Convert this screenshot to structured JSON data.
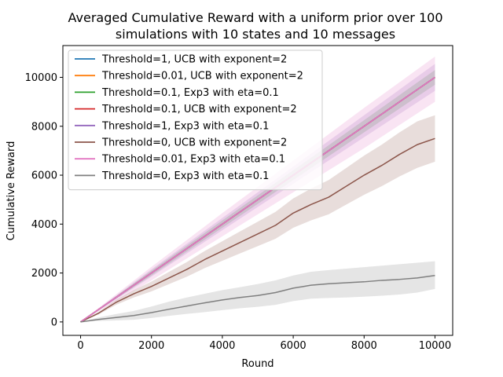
{
  "chart_data": {
    "type": "line",
    "title_lines": [
      "Averaged Cumulative Reward with a uniform prior over 100",
      "simulations with 10 states and 10 messages"
    ],
    "xlabel": "Round",
    "ylabel": "Cumulative Reward",
    "xlim": [
      -500,
      10500
    ],
    "ylim": [
      -550,
      11300
    ],
    "xticks": [
      0,
      2000,
      4000,
      6000,
      8000,
      10000
    ],
    "yticks": [
      0,
      2000,
      4000,
      6000,
      8000,
      10000
    ],
    "grid": false,
    "legend_position": "upper-left",
    "series": [
      {
        "name": "Threshold=1, UCB with exponent=2",
        "color": "#1f77b4",
        "x": [
          0,
          10000
        ],
        "y": [
          0,
          10000
        ],
        "band": [
          [
            0,
            0
          ],
          [
            0,
            0
          ]
        ]
      },
      {
        "name": "Threshold=0.01, UCB with exponent=2",
        "color": "#ff7f0e",
        "x": [
          0,
          10000
        ],
        "y": [
          0,
          10000
        ],
        "band": [
          [
            0,
            0
          ],
          [
            0,
            0
          ]
        ]
      },
      {
        "name": "Threshold=0.1, Exp3 with eta=0.1",
        "color": "#2ca02c",
        "x": [
          0,
          2000,
          4000,
          6000,
          8000,
          10000
        ],
        "y": [
          0,
          2000,
          4000,
          6000,
          8000,
          10000
        ],
        "band": [
          [
            0,
            0
          ],
          [
            1900,
            2100
          ],
          [
            3850,
            4150
          ],
          [
            5800,
            6200
          ],
          [
            7750,
            8250
          ],
          [
            9700,
            10300
          ]
        ]
      },
      {
        "name": "Threshold=0.1, UCB with exponent=2",
        "color": "#d62728",
        "x": [
          0,
          10000
        ],
        "y": [
          0,
          10000
        ],
        "band": [
          [
            0,
            0
          ],
          [
            0,
            0
          ]
        ]
      },
      {
        "name": "Threshold=1, Exp3 with eta=0.1",
        "color": "#9467bd",
        "x": [
          0,
          2000,
          4000,
          6000,
          8000,
          10000
        ],
        "y": [
          0,
          2000,
          4000,
          6000,
          8000,
          10000
        ],
        "band": [
          [
            0,
            0
          ],
          [
            1850,
            2150
          ],
          [
            3750,
            4250
          ],
          [
            5650,
            6350
          ],
          [
            7550,
            8450
          ],
          [
            9450,
            10550
          ]
        ]
      },
      {
        "name": "Threshold=0, UCB with exponent=2",
        "color": "#8c564b",
        "x": [
          0,
          500,
          1000,
          1500,
          2000,
          2500,
          3000,
          3500,
          4000,
          4500,
          5000,
          5500,
          6000,
          6500,
          7000,
          7500,
          8000,
          8500,
          9000,
          9500,
          10000
        ],
        "y": [
          0,
          350,
          800,
          1150,
          1450,
          1800,
          2150,
          2550,
          2900,
          3250,
          3600,
          3950,
          4450,
          4800,
          5100,
          5550,
          6000,
          6400,
          6850,
          7250,
          7500
        ],
        "band": [
          [
            0,
            0
          ],
          [
            300,
            400
          ],
          [
            700,
            900
          ],
          [
            1000,
            1300
          ],
          [
            1250,
            1650
          ],
          [
            1550,
            2050
          ],
          [
            1850,
            2450
          ],
          [
            2200,
            2900
          ],
          [
            2500,
            3300
          ],
          [
            2800,
            3700
          ],
          [
            3100,
            4100
          ],
          [
            3400,
            4500
          ],
          [
            3850,
            5050
          ],
          [
            4150,
            5450
          ],
          [
            4400,
            5800
          ],
          [
            4800,
            6300
          ],
          [
            5200,
            6800
          ],
          [
            5550,
            7250
          ],
          [
            5950,
            7750
          ],
          [
            6300,
            8200
          ],
          [
            6550,
            8450
          ]
        ]
      },
      {
        "name": "Threshold=0.01, Exp3 with eta=0.1",
        "color": "#e377c2",
        "x": [
          0,
          2000,
          4000,
          6000,
          8000,
          10000
        ],
        "y": [
          0,
          2000,
          4000,
          6000,
          8000,
          10000
        ],
        "band": [
          [
            0,
            0
          ],
          [
            1700,
            2250
          ],
          [
            3500,
            4450
          ],
          [
            5300,
            6600
          ],
          [
            7100,
            8750
          ],
          [
            9000,
            10850
          ]
        ]
      },
      {
        "name": "Threshold=0, Exp3 with eta=0.1",
        "color": "#7f7f7f",
        "x": [
          0,
          500,
          1000,
          1500,
          2000,
          2500,
          3000,
          3500,
          4000,
          4500,
          5000,
          5500,
          6000,
          6500,
          7000,
          7500,
          8000,
          8500,
          9000,
          9500,
          10000
        ],
        "y": [
          0,
          100,
          180,
          260,
          380,
          520,
          650,
          780,
          900,
          1000,
          1080,
          1200,
          1380,
          1500,
          1560,
          1600,
          1640,
          1700,
          1740,
          1800,
          1900
        ],
        "band": [
          [
            0,
            0
          ],
          [
            40,
            180
          ],
          [
            60,
            320
          ],
          [
            90,
            450
          ],
          [
            160,
            630
          ],
          [
            250,
            830
          ],
          [
            330,
            1000
          ],
          [
            400,
            1150
          ],
          [
            480,
            1300
          ],
          [
            560,
            1420
          ],
          [
            620,
            1550
          ],
          [
            700,
            1700
          ],
          [
            850,
            1900
          ],
          [
            950,
            2050
          ],
          [
            980,
            2120
          ],
          [
            1000,
            2180
          ],
          [
            1030,
            2240
          ],
          [
            1070,
            2300
          ],
          [
            1120,
            2360
          ],
          [
            1200,
            2420
          ],
          [
            1350,
            2480
          ]
        ]
      }
    ]
  }
}
